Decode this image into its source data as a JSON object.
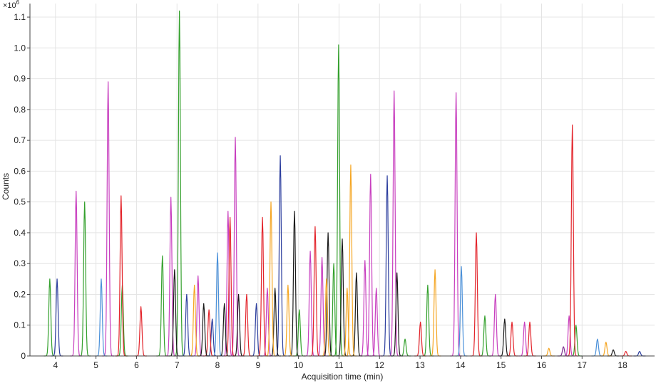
{
  "chart_data": {
    "type": "chromatogram",
    "multiplier": "×10",
    "multiplier_exp": "6",
    "y_label": "Counts",
    "x_label": "Acquisition time (min)",
    "xlim": [
      3.37,
      18.79
    ],
    "ylim": [
      0,
      1.144
    ],
    "xticks": [
      4,
      5,
      6,
      7,
      8,
      9,
      10,
      11,
      12,
      13,
      14,
      15,
      16,
      17,
      18
    ],
    "yticks": [
      0,
      0.1,
      0.2,
      0.3,
      0.4,
      0.5,
      0.6,
      0.7,
      0.8,
      0.9,
      {
        "value": 1,
        "label": "1.0"
      },
      1.1
    ],
    "grid": true,
    "series": [
      {
        "color": "#33a02c",
        "x": [
          3.86,
          4.72,
          5.65,
          6.64,
          7.06,
          10.02,
          10.87,
          10.99,
          12.63,
          13.19,
          14.6,
          16.85
        ],
        "values": [
          0.25,
          0.5,
          0.23,
          0.325,
          1.12,
          0.15,
          0.3,
          1.01,
          0.055,
          0.23,
          0.13,
          0.1
        ]
      },
      {
        "color": "#2c3e9e",
        "x": [
          4.04,
          7.24,
          7.87,
          8.96,
          9.55,
          12.19,
          18.42
        ],
        "values": [
          0.25,
          0.2,
          0.12,
          0.17,
          0.65,
          0.585,
          0.015
        ]
      },
      {
        "color": "#c83fbf",
        "x": [
          4.51,
          5.3,
          6.85,
          7.52,
          8.26,
          8.44,
          9.23,
          10.29,
          10.58,
          11.64,
          11.78,
          11.92,
          12.36,
          13.89,
          14.86,
          15.58,
          16.68
        ],
        "values": [
          0.535,
          0.89,
          0.515,
          0.26,
          0.47,
          0.71,
          0.22,
          0.34,
          0.32,
          0.31,
          0.59,
          0.22,
          0.86,
          0.855,
          0.2,
          0.11,
          0.13
        ]
      },
      {
        "color": "#4a90d9",
        "x": [
          5.13,
          8.0,
          14.02,
          17.38
        ],
        "values": [
          0.25,
          0.335,
          0.29,
          0.055
        ]
      },
      {
        "color": "#e3242b",
        "x": [
          5.62,
          6.11,
          7.79,
          8.31,
          8.72,
          9.11,
          10.41,
          13.01,
          14.39,
          15.27,
          15.71,
          16.76,
          18.08
        ],
        "values": [
          0.52,
          0.16,
          0.15,
          0.45,
          0.2,
          0.45,
          0.42,
          0.11,
          0.4,
          0.11,
          0.11,
          0.75,
          0.015
        ]
      },
      {
        "color": "#1a1a1a",
        "x": [
          6.94,
          7.66,
          8.17,
          8.52,
          9.42,
          9.9,
          10.73,
          11.08,
          11.43,
          12.43,
          15.09,
          17.77
        ],
        "values": [
          0.28,
          0.17,
          0.17,
          0.2,
          0.22,
          0.47,
          0.4,
          0.38,
          0.27,
          0.27,
          0.12,
          0.02
        ]
      },
      {
        "color": "#f5a623",
        "x": [
          7.43,
          9.32,
          9.74,
          10.69,
          11.2,
          11.29,
          13.37,
          16.18,
          17.59
        ],
        "values": [
          0.23,
          0.5,
          0.23,
          0.25,
          0.22,
          0.62,
          0.28,
          0.025,
          0.045
        ]
      },
      {
        "color": "#7b2d8e",
        "x": [
          16.54
        ],
        "values": [
          0.03
        ]
      }
    ]
  }
}
